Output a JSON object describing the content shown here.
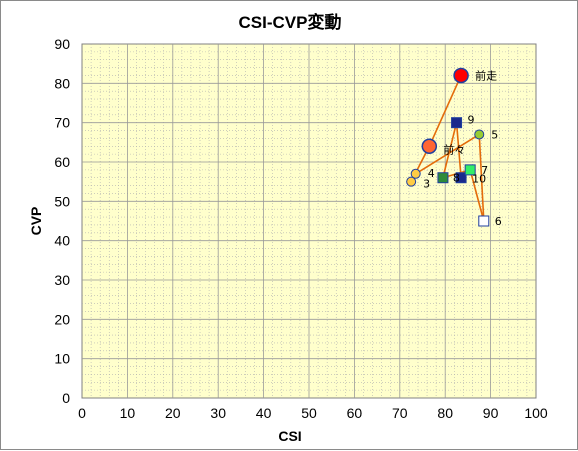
{
  "chart_data": {
    "type": "scatter",
    "title": "CSI-CVP変動",
    "xlabel": "CSI",
    "ylabel": "CVP",
    "xlim": [
      0,
      100
    ],
    "ylim": [
      0,
      90
    ],
    "xticks": [
      "0",
      "10",
      "20",
      "30",
      "40",
      "50",
      "60",
      "70",
      "80",
      "90",
      "100"
    ],
    "yticks": [
      "0",
      "10",
      "20",
      "30",
      "40",
      "50",
      "60",
      "70",
      "80",
      "90"
    ],
    "grid": true,
    "colors": {
      "plot_background": "#ffffcc",
      "grid": "#b0b0b0",
      "line": "#e46c0a",
      "latest_fill": "#ff0000",
      "latest_stroke": "#1f3f9f",
      "prev_fill": "#ff6633",
      "circle_fill": "#ffcc44",
      "circle_green_fill": "#99cc33",
      "square_navy": "#1a2a8c",
      "square_green": "#2e8b3a",
      "square_lime": "#33ee66",
      "square_open": "#ffffff"
    },
    "points": [
      {
        "label": "前走",
        "x": 83.5,
        "y": 82,
        "marker": "circle-large",
        "fill": "#ff0000"
      },
      {
        "label": "前々",
        "x": 76.5,
        "y": 64,
        "marker": "circle-large",
        "fill": "#ff6633"
      },
      {
        "label": "3",
        "x": 72.5,
        "y": 55,
        "marker": "circle",
        "fill": "#ffcc44"
      },
      {
        "label": "4",
        "x": 73.5,
        "y": 57,
        "marker": "circle",
        "fill": "#ffcc44"
      },
      {
        "label": "5",
        "x": 87.5,
        "y": 67,
        "marker": "circle",
        "fill": "#99cc33"
      },
      {
        "label": "6",
        "x": 88.5,
        "y": 45,
        "marker": "square",
        "fill": "#ffffff"
      },
      {
        "label": "7",
        "x": 85.5,
        "y": 58,
        "marker": "square",
        "fill": "#33ee66"
      },
      {
        "label": "8",
        "x": 79.5,
        "y": 56,
        "marker": "square",
        "fill": "#2e8b3a"
      },
      {
        "label": "9",
        "x": 82.5,
        "y": 70,
        "marker": "square",
        "fill": "#1a2a8c"
      },
      {
        "label": "10",
        "x": 83.5,
        "y": 56,
        "marker": "square",
        "fill": "#1a2a8c"
      }
    ],
    "connection_order": [
      "前走",
      "前々",
      "3",
      "4",
      "5",
      "6",
      "7",
      "8",
      "9",
      "10"
    ]
  }
}
